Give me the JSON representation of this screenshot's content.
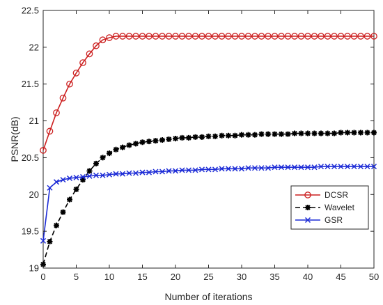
{
  "chart_data": {
    "type": "line",
    "xlabel": "Number of iterations",
    "ylabel": "PSNR(dB)",
    "xlim": [
      0,
      50
    ],
    "ylim": [
      19,
      22.5
    ],
    "xticks": [
      0,
      5,
      10,
      15,
      20,
      25,
      30,
      35,
      40,
      45,
      50
    ],
    "yticks": [
      19,
      19.5,
      20,
      20.5,
      21,
      21.5,
      22,
      22.5
    ],
    "grid": false,
    "legend_position": "right",
    "x": [
      0,
      1,
      2,
      3,
      4,
      5,
      6,
      7,
      8,
      9,
      10,
      11,
      12,
      13,
      14,
      15,
      16,
      17,
      18,
      19,
      20,
      21,
      22,
      23,
      24,
      25,
      26,
      27,
      28,
      29,
      30,
      31,
      32,
      33,
      34,
      35,
      36,
      37,
      38,
      39,
      40,
      41,
      42,
      43,
      44,
      45,
      46,
      47,
      48,
      49,
      50
    ],
    "series": [
      {
        "name": "DCSR",
        "color": "#cc1f1f",
        "marker": "circle",
        "line": "solid",
        "values": [
          20.6,
          20.86,
          21.11,
          21.31,
          21.5,
          21.65,
          21.79,
          21.91,
          22.02,
          22.1,
          22.13,
          22.15,
          22.15,
          22.15,
          22.15,
          22.15,
          22.15,
          22.15,
          22.15,
          22.15,
          22.15,
          22.15,
          22.15,
          22.15,
          22.15,
          22.15,
          22.15,
          22.15,
          22.15,
          22.15,
          22.15,
          22.15,
          22.15,
          22.15,
          22.15,
          22.15,
          22.15,
          22.15,
          22.15,
          22.15,
          22.15,
          22.15,
          22.15,
          22.15,
          22.15,
          22.15,
          22.15,
          22.15,
          22.15,
          22.15,
          22.15
        ]
      },
      {
        "name": "Wavelet",
        "color": "#000000",
        "marker": "asterisk",
        "line": "dashed",
        "values": [
          19.05,
          19.36,
          19.58,
          19.76,
          19.93,
          20.07,
          20.2,
          20.32,
          20.42,
          20.5,
          20.56,
          20.61,
          20.64,
          20.67,
          20.69,
          20.71,
          20.72,
          20.73,
          20.74,
          20.75,
          20.76,
          20.77,
          20.77,
          20.78,
          20.78,
          20.79,
          20.79,
          20.8,
          20.8,
          20.8,
          20.81,
          20.81,
          20.81,
          20.82,
          20.82,
          20.82,
          20.82,
          20.82,
          20.83,
          20.83,
          20.83,
          20.83,
          20.83,
          20.83,
          20.83,
          20.84,
          20.84,
          20.84,
          20.84,
          20.84,
          20.84
        ]
      },
      {
        "name": "GSR",
        "color": "#1c2bd6",
        "marker": "x",
        "line": "solid",
        "values": [
          19.37,
          20.09,
          20.17,
          20.2,
          20.22,
          20.23,
          20.24,
          20.25,
          20.26,
          20.26,
          20.27,
          20.28,
          20.28,
          20.29,
          20.29,
          20.3,
          20.3,
          20.31,
          20.31,
          20.32,
          20.32,
          20.33,
          20.33,
          20.33,
          20.34,
          20.34,
          20.34,
          20.35,
          20.35,
          20.35,
          20.35,
          20.36,
          20.36,
          20.36,
          20.36,
          20.37,
          20.37,
          20.37,
          20.37,
          20.37,
          20.37,
          20.37,
          20.38,
          20.38,
          20.38,
          20.38,
          20.38,
          20.38,
          20.38,
          20.38,
          20.38
        ]
      }
    ]
  }
}
